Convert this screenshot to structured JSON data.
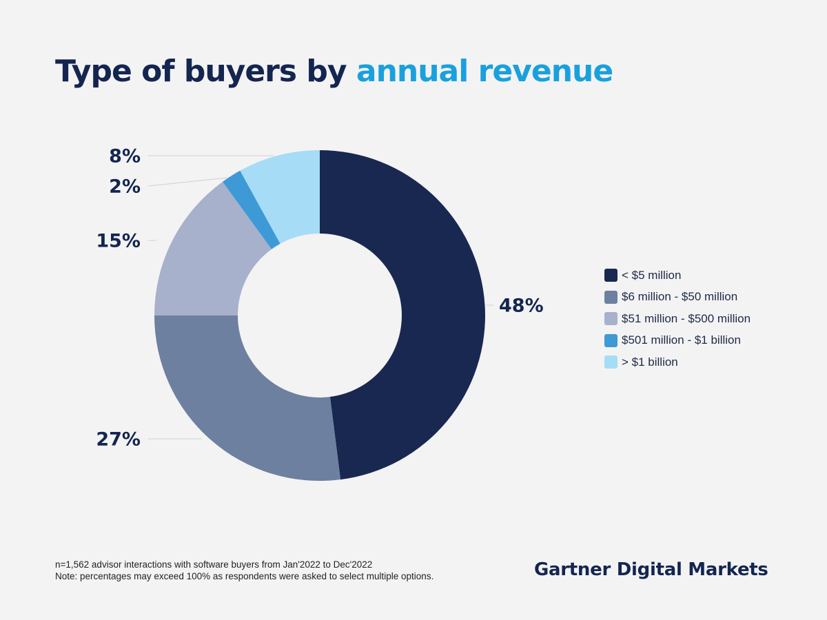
{
  "title": {
    "main": "Type of buyers by ",
    "accent": "annual revenue"
  },
  "chart_data": {
    "type": "pie",
    "donut": true,
    "title": "Type of buyers by annual revenue",
    "categories": [
      "< $5 million",
      "$6 million - $50 million",
      "$51 million - $500 million",
      "$501 million - $1 billion",
      "> $1 billion"
    ],
    "values": [
      48,
      27,
      15,
      2,
      8
    ],
    "labels": [
      "48%",
      "27%",
      "15%",
      "2%",
      "8%"
    ],
    "colors": [
      "#192850",
      "#6e809f",
      "#a7b1cb",
      "#3e9ad6",
      "#a6dcf6"
    ],
    "legend_position": "right"
  },
  "footnotes": [
    "n=1,562 advisor interactions with software buyers from Jan'2022 to Dec'2022",
    "Note: percentages may exceed 100% as respondents were asked to select multiple options."
  ],
  "brand": "Gartner Digital Markets"
}
